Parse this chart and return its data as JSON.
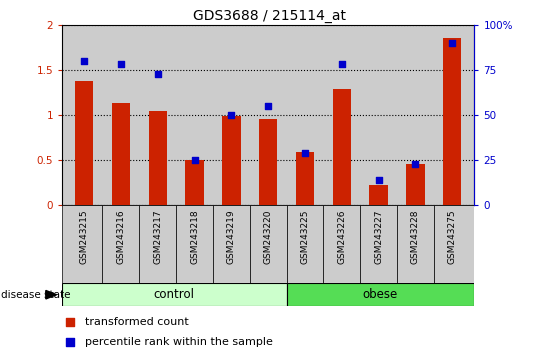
{
  "title": "GDS3688 / 215114_at",
  "categories": [
    "GSM243215",
    "GSM243216",
    "GSM243217",
    "GSM243218",
    "GSM243219",
    "GSM243220",
    "GSM243225",
    "GSM243226",
    "GSM243227",
    "GSM243228",
    "GSM243275"
  ],
  "bar_values": [
    1.38,
    1.13,
    1.04,
    0.5,
    0.99,
    0.96,
    0.59,
    1.29,
    0.22,
    0.46,
    1.85
  ],
  "dot_values": [
    80,
    78,
    73,
    25,
    50,
    55,
    29,
    78,
    14,
    23,
    90
  ],
  "bar_color": "#cc2200",
  "dot_color": "#0000cc",
  "ylim_left": [
    0,
    2
  ],
  "ylim_right": [
    0,
    100
  ],
  "yticks_left": [
    0,
    0.5,
    1.0,
    1.5,
    2.0
  ],
  "yticks_right": [
    0,
    25,
    50,
    75,
    100
  ],
  "ytick_labels_left": [
    "0",
    "0.5",
    "1",
    "1.5",
    "2"
  ],
  "ytick_labels_right": [
    "0",
    "25",
    "50",
    "75",
    "100%"
  ],
  "n_control": 6,
  "control_label": "control",
  "obese_label": "obese",
  "disease_state_label": "disease state",
  "legend_bar_label": "transformed count",
  "legend_dot_label": "percentile rank within the sample",
  "control_color": "#ccffcc",
  "obese_color": "#55dd55",
  "background_color": "#cccccc",
  "bar_width": 0.5,
  "title_fontsize": 10
}
